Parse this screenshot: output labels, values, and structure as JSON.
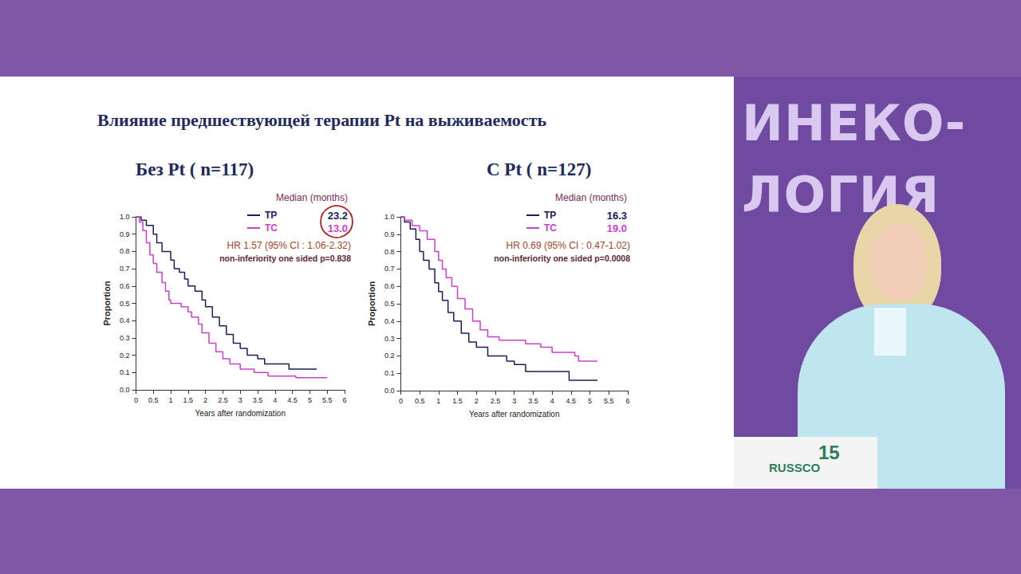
{
  "slide": {
    "title": "Влияние предшествующей терапии Pt на выживаемость",
    "branding": [
      "ИНЕКО-",
      "ЛОГИЯ"
    ],
    "podium": [
      "RUSSCO",
      "15"
    ]
  },
  "chart_data": [
    {
      "type": "line",
      "title": "Без Pt ( n=117)",
      "x_label": "Years after randomization",
      "y_label": "Proportion",
      "legend_title": "Median (months)",
      "hr_text": "HR 1.57 (95% CI : 1.06-2.32)",
      "p_text": "non-inferiority one sided p=0.838",
      "xlim": [
        0,
        6
      ],
      "xticks": [
        0,
        0.5,
        1,
        1.5,
        2,
        2.5,
        3,
        3.5,
        4,
        4.5,
        5,
        5.5,
        6
      ],
      "ylim": [
        0,
        1
      ],
      "yticks": [
        {
          "value": 0,
          "label": "0.0"
        },
        0.1,
        0.2,
        0.3,
        0.4,
        0.5,
        0.6,
        0.7,
        0.8,
        0.9,
        {
          "value": 1,
          "label": "1.0"
        }
      ],
      "grid": false,
      "line_style": "step",
      "series": [
        {
          "name": "TP",
          "color": "#1c1c5a",
          "median": "23.2",
          "x": [
            0,
            0.15,
            0.3,
            0.5,
            0.6,
            0.75,
            1.0,
            1.1,
            1.25,
            1.4,
            1.5,
            1.7,
            1.9,
            2.0,
            2.2,
            2.4,
            2.6,
            2.8,
            3.0,
            3.2,
            3.5,
            3.7,
            4.2,
            4.4,
            5.2
          ],
          "values": [
            1,
            0.98,
            0.95,
            0.9,
            0.85,
            0.8,
            0.75,
            0.7,
            0.68,
            0.64,
            0.6,
            0.57,
            0.52,
            0.48,
            0.42,
            0.37,
            0.32,
            0.27,
            0.24,
            0.2,
            0.18,
            0.15,
            0.15,
            0.12,
            0.12
          ]
        },
        {
          "name": "TC",
          "color": "#cc3fcc",
          "median": "13.0",
          "x": [
            0,
            0.1,
            0.2,
            0.3,
            0.4,
            0.5,
            0.6,
            0.75,
            0.85,
            0.95,
            1.0,
            1.3,
            1.5,
            1.6,
            1.8,
            1.9,
            2.1,
            2.3,
            2.5,
            2.7,
            3.0,
            3.4,
            3.8,
            4.6,
            5.5
          ],
          "values": [
            1,
            0.97,
            0.92,
            0.85,
            0.78,
            0.73,
            0.68,
            0.62,
            0.57,
            0.52,
            0.5,
            0.48,
            0.45,
            0.42,
            0.38,
            0.33,
            0.27,
            0.22,
            0.18,
            0.15,
            0.12,
            0.1,
            0.08,
            0.07,
            0.07
          ]
        }
      ]
    },
    {
      "type": "line",
      "title": "С Pt ( n=127)",
      "x_label": "Years after randomization",
      "y_label": "Proportion",
      "legend_title": "Median (months)",
      "hr_text": "HR 0.69 (95% CI : 0.47-1.02)",
      "p_text": "non-inferiority one sided p=0.0008",
      "xlim": [
        0,
        6
      ],
      "xticks": [
        0,
        0.5,
        1,
        1.5,
        2,
        2.5,
        3,
        3.5,
        4,
        4.5,
        5,
        5.5,
        6
      ],
      "ylim": [
        0,
        1
      ],
      "yticks": [
        {
          "value": 0,
          "label": "0.0"
        },
        0.1,
        0.2,
        0.3,
        0.4,
        0.5,
        0.6,
        0.7,
        0.8,
        0.9,
        {
          "value": 1,
          "label": "1.0"
        }
      ],
      "grid": false,
      "line_style": "step",
      "series": [
        {
          "name": "TP",
          "color": "#1c1c5a",
          "median": "16.3",
          "x": [
            0,
            0.1,
            0.25,
            0.4,
            0.5,
            0.6,
            0.75,
            0.9,
            1.0,
            1.1,
            1.25,
            1.4,
            1.6,
            1.8,
            2.0,
            2.3,
            2.8,
            3.0,
            3.3,
            4.4,
            4.45,
            5.2
          ],
          "values": [
            1,
            0.97,
            0.93,
            0.87,
            0.8,
            0.75,
            0.7,
            0.62,
            0.57,
            0.52,
            0.45,
            0.4,
            0.33,
            0.28,
            0.25,
            0.2,
            0.17,
            0.15,
            0.11,
            0.11,
            0.06,
            0.06
          ]
        },
        {
          "name": "TC",
          "color": "#cc3fcc",
          "median": "19.0",
          "x": [
            0,
            0.1,
            0.3,
            0.5,
            0.7,
            0.9,
            1.0,
            1.1,
            1.2,
            1.35,
            1.5,
            1.7,
            1.9,
            2.1,
            2.3,
            2.6,
            3.3,
            3.7,
            4.0,
            4.6,
            4.7,
            5.2
          ],
          "values": [
            1,
            0.98,
            0.95,
            0.92,
            0.87,
            0.8,
            0.75,
            0.7,
            0.65,
            0.6,
            0.53,
            0.47,
            0.4,
            0.35,
            0.31,
            0.29,
            0.27,
            0.25,
            0.22,
            0.2,
            0.17,
            0.17
          ]
        }
      ]
    }
  ]
}
